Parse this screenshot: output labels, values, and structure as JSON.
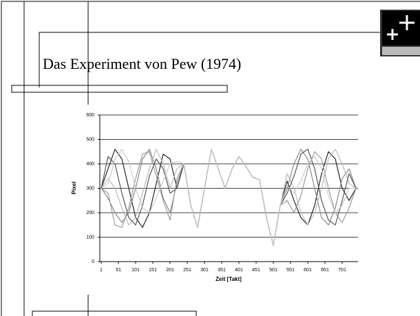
{
  "slide_title": "Das Experiment von Pew (1974)",
  "chart_data": {
    "type": "line",
    "xlabel": "Zeit [Takt]",
    "ylabel": "Pixel",
    "x": [
      1,
      21,
      41,
      61,
      81,
      101,
      121,
      141,
      161,
      181,
      201,
      221,
      241,
      261,
      281,
      301,
      321,
      341,
      361,
      381,
      401,
      421,
      441,
      461,
      481,
      501,
      521,
      541,
      561,
      581,
      601,
      621,
      641,
      661,
      681,
      701,
      721,
      741
    ],
    "series": [
      {
        "color": "#222222",
        "values": [
          300,
          380,
          460,
          420,
          300,
          180,
          140,
          200,
          320,
          440,
          420,
          300,
          400,
          230,
          140,
          300,
          460,
          380,
          300,
          380,
          430,
          390,
          345,
          335,
          180,
          65,
          230,
          330,
          250,
          180,
          150,
          230,
          360,
          450,
          420,
          300,
          250,
          300
        ]
      },
      {
        "color": "#888888",
        "values": [
          300,
          260,
          200,
          160,
          200,
          300,
          420,
          460,
          380,
          260,
          200,
          320,
          400,
          230,
          140,
          300,
          460,
          380,
          300,
          380,
          430,
          390,
          345,
          335,
          180,
          65,
          230,
          300,
          400,
          460,
          420,
          300,
          180,
          150,
          220,
          340,
          380,
          300
        ]
      },
      {
        "color": "#bbbbbb",
        "values": [
          300,
          340,
          300,
          220,
          150,
          180,
          280,
          380,
          460,
          400,
          300,
          380,
          400,
          230,
          140,
          300,
          460,
          380,
          300,
          380,
          430,
          390,
          345,
          335,
          180,
          65,
          230,
          360,
          300,
          200,
          150,
          200,
          300,
          420,
          460,
          400,
          320,
          300
        ]
      },
      {
        "color": "#555555",
        "values": [
          300,
          430,
          400,
          280,
          180,
          150,
          230,
          350,
          420,
          380,
          280,
          300,
          400,
          230,
          140,
          300,
          460,
          380,
          300,
          380,
          430,
          390,
          345,
          335,
          180,
          65,
          230,
          280,
          350,
          440,
          460,
          380,
          250,
          170,
          150,
          250,
          360,
          300
        ]
      },
      {
        "color": "#999999",
        "values": [
          300,
          280,
          150,
          140,
          220,
          340,
          440,
          450,
          350,
          250,
          170,
          340,
          400,
          230,
          140,
          300,
          460,
          380,
          300,
          380,
          430,
          390,
          345,
          335,
          180,
          65,
          230,
          250,
          200,
          270,
          380,
          450,
          420,
          300,
          200,
          160,
          220,
          300
        ]
      },
      {
        "color": "#cccccc",
        "values": [
          300,
          320,
          420,
          460,
          410,
          300,
          220,
          200,
          260,
          330,
          400,
          410,
          400,
          230,
          140,
          300,
          460,
          380,
          300,
          380,
          430,
          390,
          345,
          335,
          180,
          65,
          230,
          310,
          280,
          330,
          400,
          430,
          380,
          270,
          200,
          230,
          300,
          300
        ]
      }
    ],
    "xlim": [
      1,
      745
    ],
    "xticks": [
      1,
      51,
      101,
      151,
      201,
      251,
      301,
      351,
      401,
      451,
      501,
      551,
      601,
      651,
      701
    ],
    "ylim": [
      0,
      600
    ],
    "yticks": [
      0,
      100,
      200,
      300,
      400,
      500,
      600
    ],
    "grid": true
  }
}
